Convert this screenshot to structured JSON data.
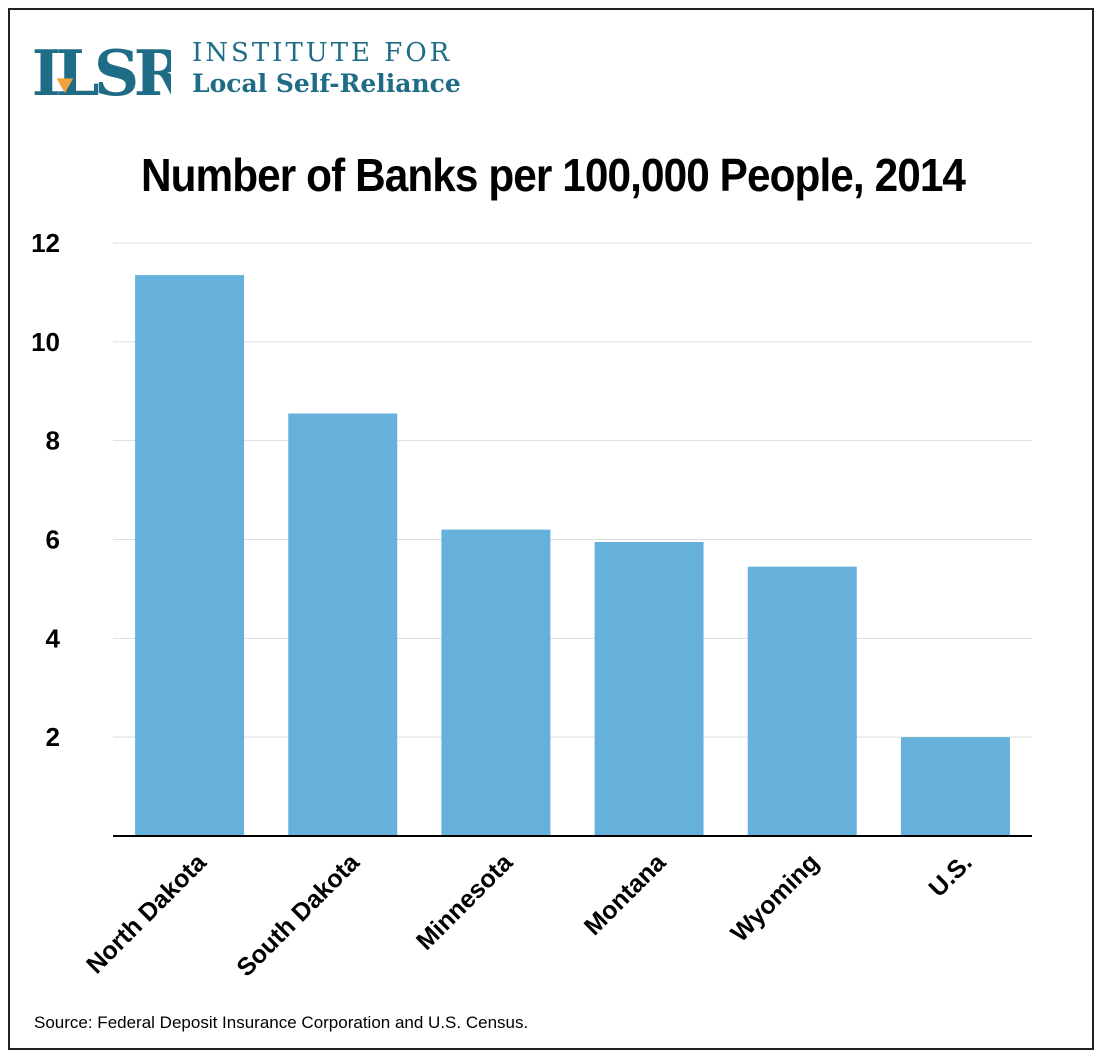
{
  "brand": {
    "mark": "ILSR",
    "line1": "INSTITUTE FOR",
    "line2": "Local Self-Reliance",
    "color": "#1f6c86",
    "accent": "#f2a23a"
  },
  "chart_data": {
    "type": "bar",
    "title": "Number of Banks per 100,000 People, 2014",
    "categories": [
      "North Dakota",
      "South Dakota",
      "Minnesota",
      "Montana",
      "Wyoming",
      "U.S."
    ],
    "values": [
      11.35,
      8.55,
      6.2,
      5.95,
      5.45,
      2.0
    ],
    "yticks": [
      2,
      4,
      6,
      8,
      10,
      12
    ],
    "ylim": [
      0,
      12
    ],
    "xlabel": "",
    "ylabel": "",
    "grid": true,
    "bar_color": "#66b1dc"
  },
  "source": "Source: Federal Deposit Insurance Corporation and U.S. Census."
}
